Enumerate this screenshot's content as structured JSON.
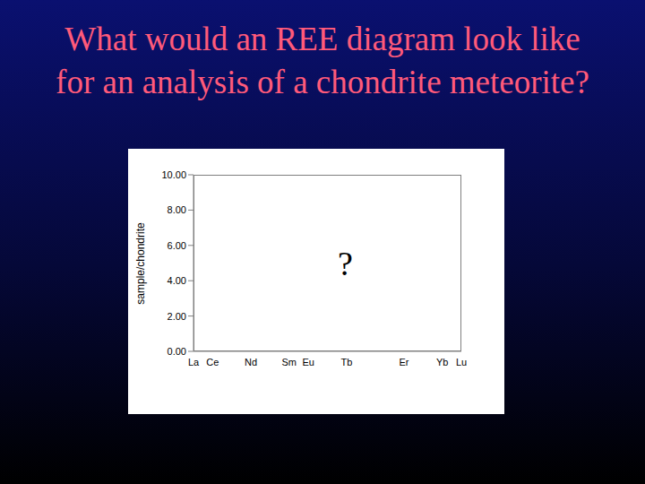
{
  "title": "What would an REE diagram look like for an analysis of a chondrite meteorite?",
  "chart_data": {
    "type": "line",
    "y_label": "sample/chondrite",
    "categories": [
      "La",
      "Ce",
      null,
      "Nd",
      null,
      "Sm",
      "Eu",
      null,
      "Tb",
      null,
      null,
      "Er",
      null,
      "Yb",
      "Lu"
    ],
    "values": [
      null,
      null,
      null,
      null,
      null,
      null,
      null,
      null,
      null,
      null,
      null,
      null,
      null,
      null,
      null
    ],
    "ylim": [
      0,
      10
    ],
    "yticks": [
      {
        "value": 0,
        "label": "0.00"
      },
      {
        "value": 2,
        "label": "2.00"
      },
      {
        "value": 4,
        "label": "4.00"
      },
      {
        "value": 6,
        "label": "6.00"
      },
      {
        "value": 8,
        "label": "8.00"
      },
      {
        "value": 10,
        "label": "10.00"
      }
    ],
    "annotation": "?",
    "grid": false
  }
}
